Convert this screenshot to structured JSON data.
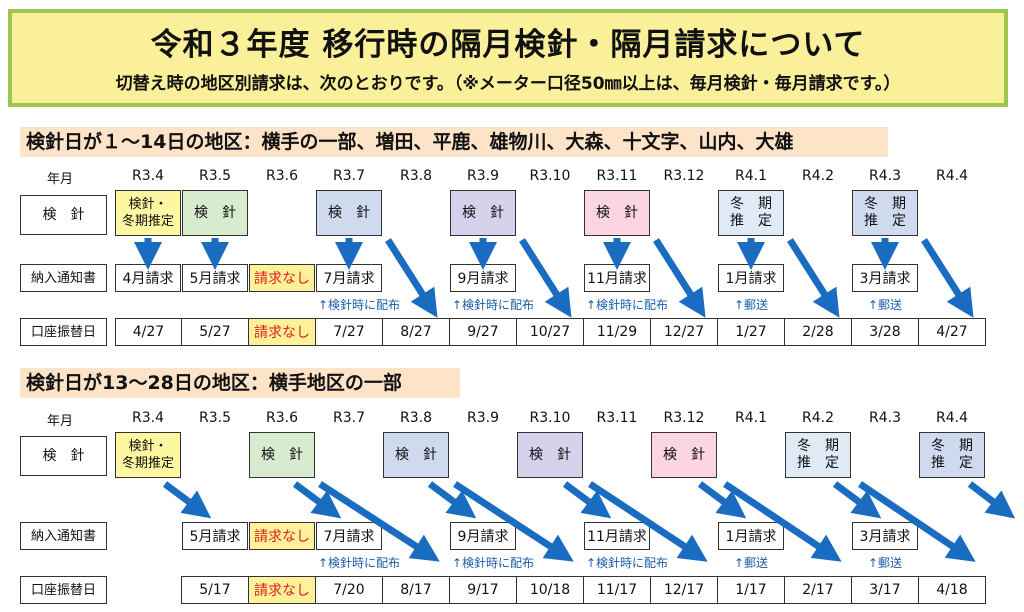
{
  "title": "令和３年度 移行時の隔月検針・隔月請求について",
  "subtitle": "切替え時の地区別請求は、次のとおりです。（※メーター口径50㎜以上は、毎月検針・毎月請求です。）",
  "row_labels": {
    "month": "年月",
    "reading": "検　針",
    "notice": "納入通知書",
    "transfer": "口座振替日"
  },
  "section1": {
    "heading": "検針日が１～14日の地区：横手の一部、増田、平鹿、雄物川、大森、十文字、山内、大雄",
    "months": [
      "R3.4",
      "R3.5",
      "R3.6",
      "R3.7",
      "R3.8",
      "R3.9",
      "R3.10",
      "R3.11",
      "R3.12",
      "R4.1",
      "R4.2",
      "R4.3",
      "R4.4"
    ],
    "readings": [
      {
        "label": "検針・\n冬期推定",
        "color": "y"
      },
      {
        "label": "検　針",
        "color": "g"
      },
      {
        "label": "検　針",
        "color": "b"
      },
      {
        "label": "検　針",
        "color": "p"
      },
      {
        "label": "検　針",
        "color": "pk"
      },
      {
        "label": "冬　期\n推　定",
        "color": "lb"
      },
      {
        "label": "冬　期\n推　定",
        "color": "b"
      }
    ],
    "notices": [
      "4月請求",
      "5月請求",
      "請求なし",
      "7月請求",
      "9月請求",
      "11月請求",
      "1月請求",
      "3月請求"
    ],
    "notes": [
      "↑検針時に配布",
      "↑検針時に配布",
      "↑検針時に配布",
      "↑郵送",
      "↑郵送"
    ],
    "transfers": [
      "4/27",
      "5/27",
      "請求なし",
      "7/27",
      "8/27",
      "9/27",
      "10/27",
      "11/29",
      "12/27",
      "1/27",
      "2/28",
      "3/28",
      "4/27"
    ]
  },
  "section2": {
    "heading": "検針日が13～28日の地区：横手地区の一部",
    "months": [
      "R3.4",
      "R3.5",
      "R3.6",
      "R3.7",
      "R3.8",
      "R3.9",
      "R3.10",
      "R3.11",
      "R3.12",
      "R4.1",
      "R4.2",
      "R4.3",
      "R4.4"
    ],
    "readings": [
      {
        "label": "検針・\n冬期推定",
        "color": "y"
      },
      {
        "label": "検　針",
        "color": "g"
      },
      {
        "label": "検　針",
        "color": "b"
      },
      {
        "label": "検　針",
        "color": "p"
      },
      {
        "label": "検　針",
        "color": "pk"
      },
      {
        "label": "冬　期\n推　定",
        "color": "lb"
      },
      {
        "label": "冬　期\n推　定",
        "color": "b"
      }
    ],
    "notices": [
      "5月請求",
      "請求なし",
      "7月請求",
      "9月請求",
      "11月請求",
      "1月請求",
      "3月請求"
    ],
    "notes": [
      "↑検針時に配布",
      "↑検針時に配布",
      "↑検針時に配布",
      "↑郵送",
      "↑郵送"
    ],
    "transfers": [
      "5/17",
      "請求なし",
      "7/20",
      "8/17",
      "9/17",
      "10/18",
      "11/17",
      "12/17",
      "1/17",
      "2/17",
      "3/17",
      "4/18"
    ]
  },
  "colors": {
    "arrow": "#1a6cc0",
    "title_border": "#9ec74f",
    "title_bg": "#fbf09a",
    "section_bg": "#fde3c8",
    "none_text": "#e01e1e"
  }
}
